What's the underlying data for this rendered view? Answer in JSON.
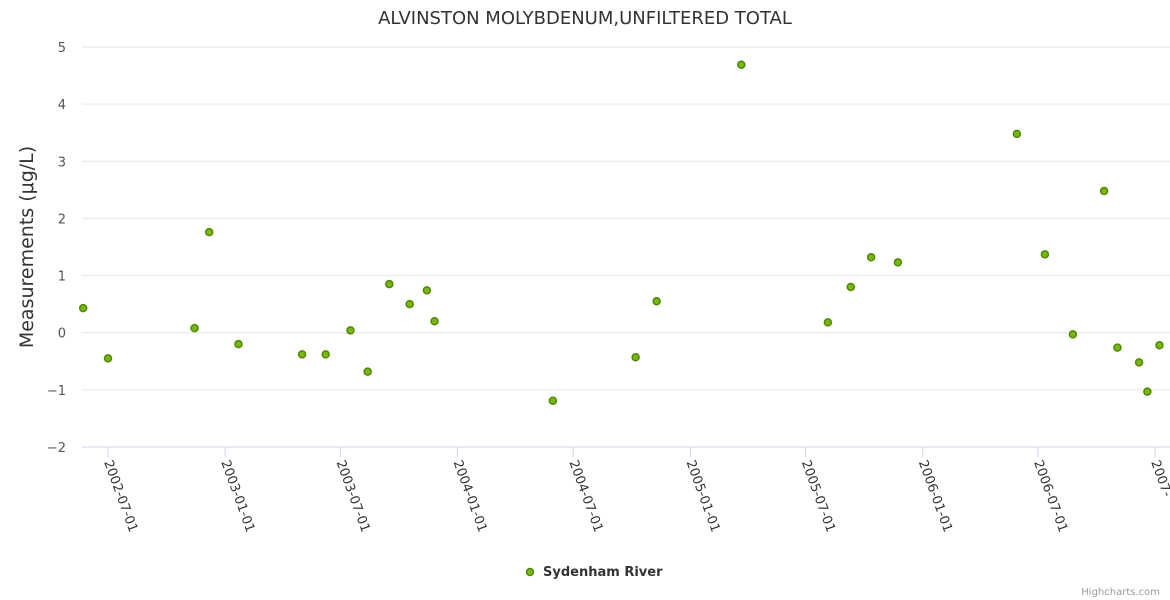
{
  "chart_data": {
    "type": "scatter",
    "title": "ALVINSTON MOLYBDENUM,UNFILTERED TOTAL",
    "xlabel": "",
    "ylabel": "Measurements (μg/L)",
    "ylim": [
      -2,
      5
    ],
    "yticks": [
      "−2",
      "−1",
      "0",
      "1",
      "2",
      "3",
      "4",
      "5"
    ],
    "xticks": [
      "2002-07-01",
      "2003-01-01",
      "2003-07-01",
      "2004-01-01",
      "2004-07-01",
      "2005-01-01",
      "2005-07-01",
      "2006-01-01",
      "2006-07-01",
      "2007-"
    ],
    "series": [
      {
        "name": "Sydenham River",
        "color": "#7cb518",
        "points": [
          {
            "x": "2002-05-23",
            "y": 0.43
          },
          {
            "x": "2002-07-01",
            "y": -0.45
          },
          {
            "x": "2002-11-14",
            "y": 0.08
          },
          {
            "x": "2002-12-07",
            "y": 1.76
          },
          {
            "x": "2003-01-22",
            "y": -0.2
          },
          {
            "x": "2003-05-02",
            "y": -0.38
          },
          {
            "x": "2003-06-08",
            "y": -0.38
          },
          {
            "x": "2003-07-17",
            "y": 0.04
          },
          {
            "x": "2003-08-13",
            "y": -0.68
          },
          {
            "x": "2003-09-16",
            "y": 0.85
          },
          {
            "x": "2003-10-18",
            "y": 0.5
          },
          {
            "x": "2003-11-14",
            "y": 0.74
          },
          {
            "x": "2003-11-26",
            "y": 0.2
          },
          {
            "x": "2004-05-30",
            "y": -1.19
          },
          {
            "x": "2004-10-07",
            "y": -0.43
          },
          {
            "x": "2004-11-09",
            "y": 0.55
          },
          {
            "x": "2005-03-22",
            "y": 4.69
          },
          {
            "x": "2005-08-05",
            "y": 0.18
          },
          {
            "x": "2005-09-10",
            "y": 0.8
          },
          {
            "x": "2005-10-12",
            "y": 1.32
          },
          {
            "x": "2005-11-23",
            "y": 1.23
          },
          {
            "x": "2006-05-29",
            "y": 3.48
          },
          {
            "x": "2006-07-12",
            "y": 1.37
          },
          {
            "x": "2006-08-25",
            "y": -0.03
          },
          {
            "x": "2006-10-13",
            "y": 2.48
          },
          {
            "x": "2006-11-03",
            "y": -0.26
          },
          {
            "x": "2006-12-07",
            "y": -0.52
          },
          {
            "x": "2006-12-20",
            "y": -1.03
          },
          {
            "x": "2007-01-08",
            "y": -0.22
          }
        ]
      }
    ],
    "legend": "bottom-center",
    "credits": "Highcharts.com"
  }
}
